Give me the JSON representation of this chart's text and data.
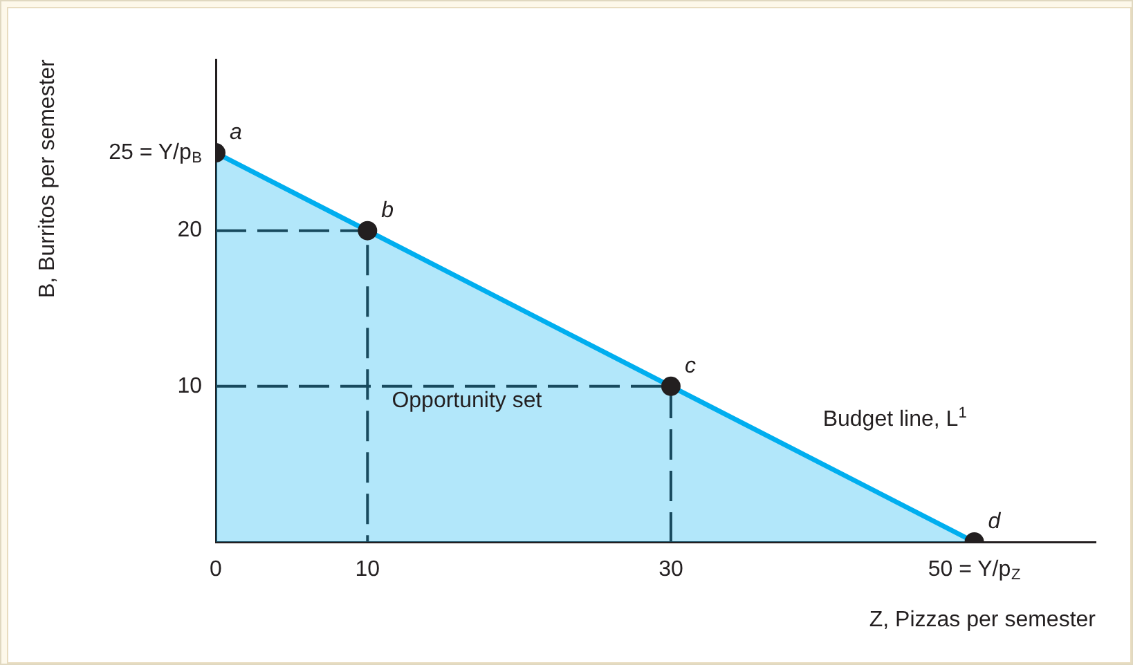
{
  "chart_data": {
    "type": "area",
    "xlabel": "Z, Pizzas per semester",
    "ylabel": "B, Burritos per semester",
    "xlim": [
      0,
      58
    ],
    "ylim": [
      0,
      31
    ],
    "xticks": [
      0,
      10,
      30,
      {
        "value": 50,
        "label": "50 = Y/p$_{Z}$"
      }
    ],
    "yticks": [
      10,
      20,
      {
        "value": 25,
        "label": "25 = Y/p$_{B}$"
      }
    ],
    "grid": false,
    "legend": false,
    "series": [
      {
        "color": "#00aeef",
        "x": [
          0,
          10,
          30,
          50
        ],
        "values": [
          25,
          20,
          10,
          0
        ],
        "marker": "none"
      },
      {
        "type": "line",
        "color": "#231f20",
        "x": [
          0,
          10,
          10
        ],
        "values": [
          20,
          20,
          0
        ],
        "line_style": "dashed",
        "marker": "none"
      },
      {
        "type": "line",
        "color": "#231f20",
        "x": [
          0,
          30,
          30
        ],
        "values": [
          10,
          10,
          0
        ],
        "line_style": "dashed",
        "marker": "none"
      },
      {
        "type": "scatter",
        "color": "#231f20",
        "x": [
          0,
          10,
          30,
          50
        ],
        "values": [
          25,
          20,
          10,
          0
        ],
        "marker": "circle"
      }
    ],
    "annotations": [
      {
        "text": "a",
        "x": 0,
        "y": 25
      },
      {
        "text": "b",
        "x": 10,
        "y": 20
      },
      {
        "text": "c",
        "x": 30,
        "y": 10
      },
      {
        "text": "d",
        "x": 50,
        "y": 0
      },
      "Opportunity set",
      "Budget line, L$^{1}$"
    ]
  }
}
